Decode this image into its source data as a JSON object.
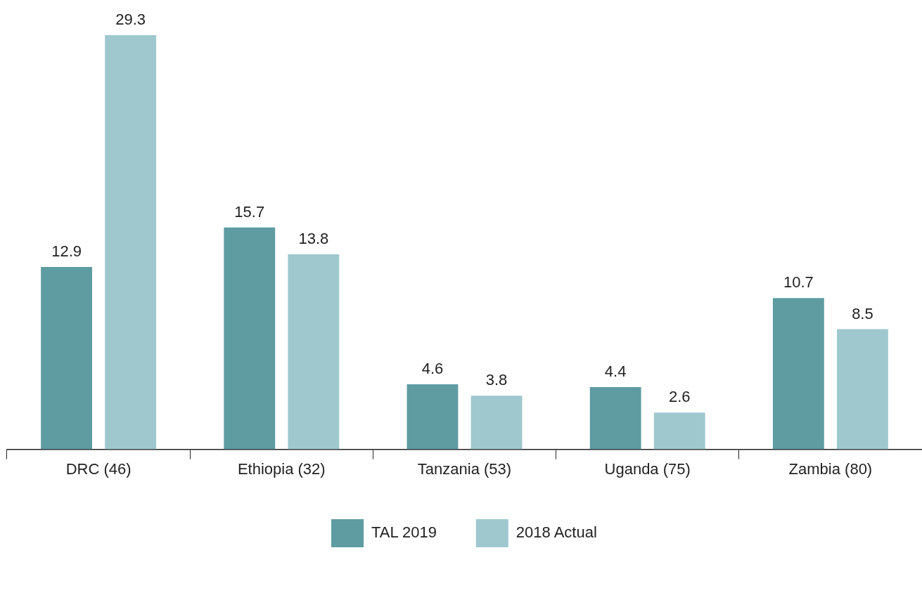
{
  "chart_data": {
    "type": "bar",
    "categories": [
      "DRC (46)",
      "Ethiopia (32)",
      "Tanzania (53)",
      "Uganda (75)",
      "Zambia (80)"
    ],
    "series": [
      {
        "name": "TAL 2019",
        "color": "#5f9ca2",
        "values": [
          12.9,
          15.7,
          4.6,
          4.4,
          10.7
        ]
      },
      {
        "name": "2018 Actual",
        "color": "#9ec8ce",
        "values": [
          29.3,
          13.8,
          3.8,
          2.6,
          8.5
        ]
      }
    ],
    "data_labels": true,
    "legend": "bottom",
    "grid": false
  }
}
